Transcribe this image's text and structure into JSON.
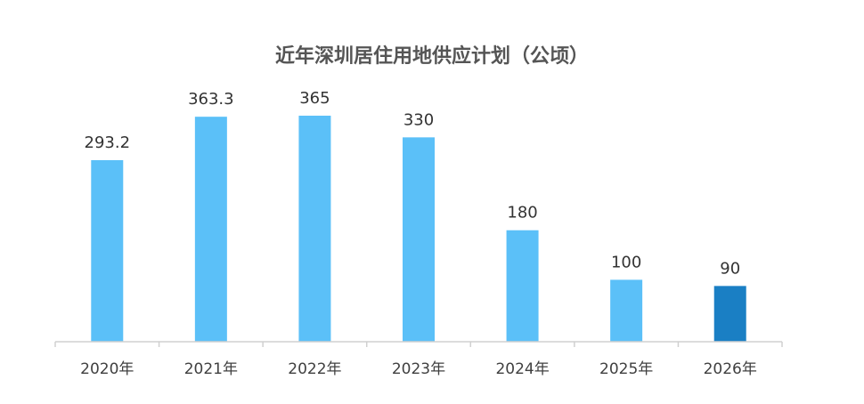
{
  "chart_data": {
    "type": "bar",
    "title": "近年深圳居住用地供应计划（公顷）",
    "categories": [
      "2020年",
      "2021年",
      "2022年",
      "2023年",
      "2024年",
      "2025年",
      "2026年"
    ],
    "values": [
      293.2,
      363.3,
      365,
      330,
      180,
      100,
      90
    ],
    "value_labels": [
      "293.2",
      "363.3",
      "365",
      "330",
      "180",
      "100",
      "90"
    ],
    "xlabel": "",
    "ylabel": "",
    "ylim": [
      0,
      365
    ],
    "grid": false,
    "legend": "none",
    "colors": {
      "bar": "#5bc0f8",
      "highlight_bar": "#1a7fc4",
      "axis": "#d0d0d0"
    },
    "highlight_index": 6
  }
}
